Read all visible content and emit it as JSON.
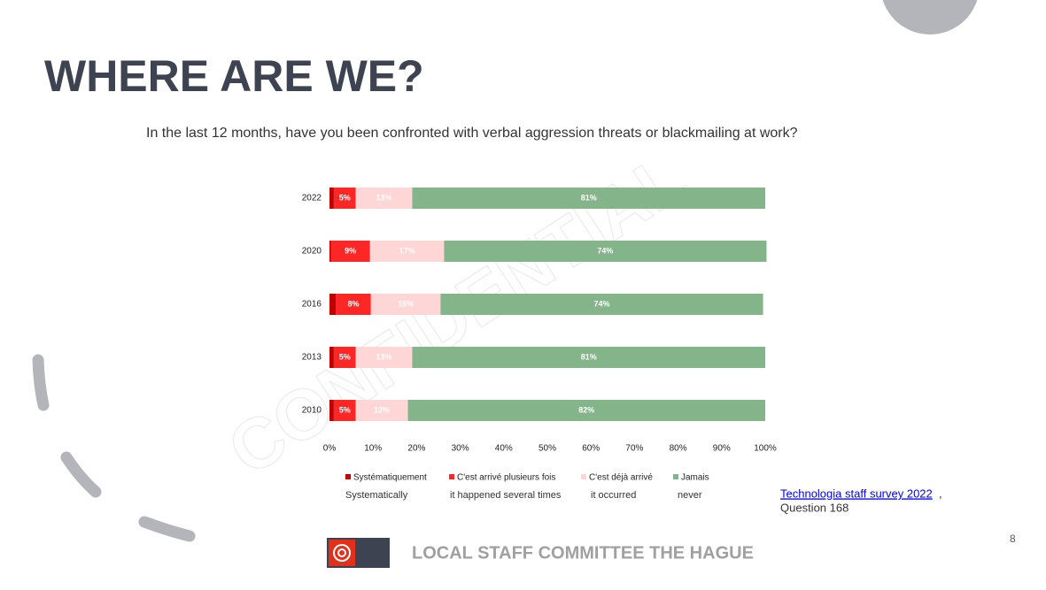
{
  "title": "WHERE ARE WE?",
  "chart_data": {
    "type": "stacked-barh",
    "subtitle": "In the last 12 months, have you been confronted with verbal aggression threats or blackmailing at work?",
    "categories": [
      "2022",
      "2020",
      "2016",
      "2013",
      "2010"
    ],
    "series": [
      {
        "name": "Systématiquement",
        "color": "#c00000",
        "values": [
          1,
          0.3,
          1.5,
          1,
          1
        ]
      },
      {
        "name": "C'est arrivé plusieurs fois",
        "color": "#ff2626",
        "values": [
          5,
          9,
          8,
          5,
          5
        ],
        "value_labels": [
          "5%",
          "9%",
          "8%",
          "5%",
          "5%"
        ]
      },
      {
        "name": "C'est déjà arrivé",
        "color": "#ffd6d6",
        "values": [
          13,
          17,
          16,
          13,
          12
        ],
        "value_labels": [
          "13%",
          "17%",
          "16%",
          "13%",
          "12%"
        ]
      },
      {
        "name": "Jamais",
        "color": "#84b48a",
        "values": [
          81,
          74,
          74,
          81,
          82
        ],
        "value_labels": [
          "81%",
          "74%",
          "74%",
          "81%",
          "82%"
        ]
      }
    ],
    "legend_translations": [
      "Systematically",
      "it happened several times",
      "it occurred",
      "never"
    ],
    "xlim": [
      0,
      100
    ],
    "xticks": [
      {
        "value": 0,
        "label": "0%"
      },
      {
        "value": 10,
        "label": "10%"
      },
      {
        "value": 20,
        "label": "20%"
      },
      {
        "value": 30,
        "label": "30%"
      },
      {
        "value": 40,
        "label": "40%"
      },
      {
        "value": 50,
        "label": "50%"
      },
      {
        "value": 60,
        "label": "60%"
      },
      {
        "value": 70,
        "label": "70%"
      },
      {
        "value": 80,
        "label": "80%"
      },
      {
        "value": 90,
        "label": "90%"
      },
      {
        "value": 100,
        "label": "100%"
      }
    ],
    "legend": "bottom"
  },
  "watermark": "CONFIDENTIAL",
  "source": {
    "link": "Technologia staff survey 2022",
    "separator": ",",
    "detail": "Question 168"
  },
  "page_number": "8",
  "footer": "LOCAL STAFF COMMITTEE THE HAGUE"
}
